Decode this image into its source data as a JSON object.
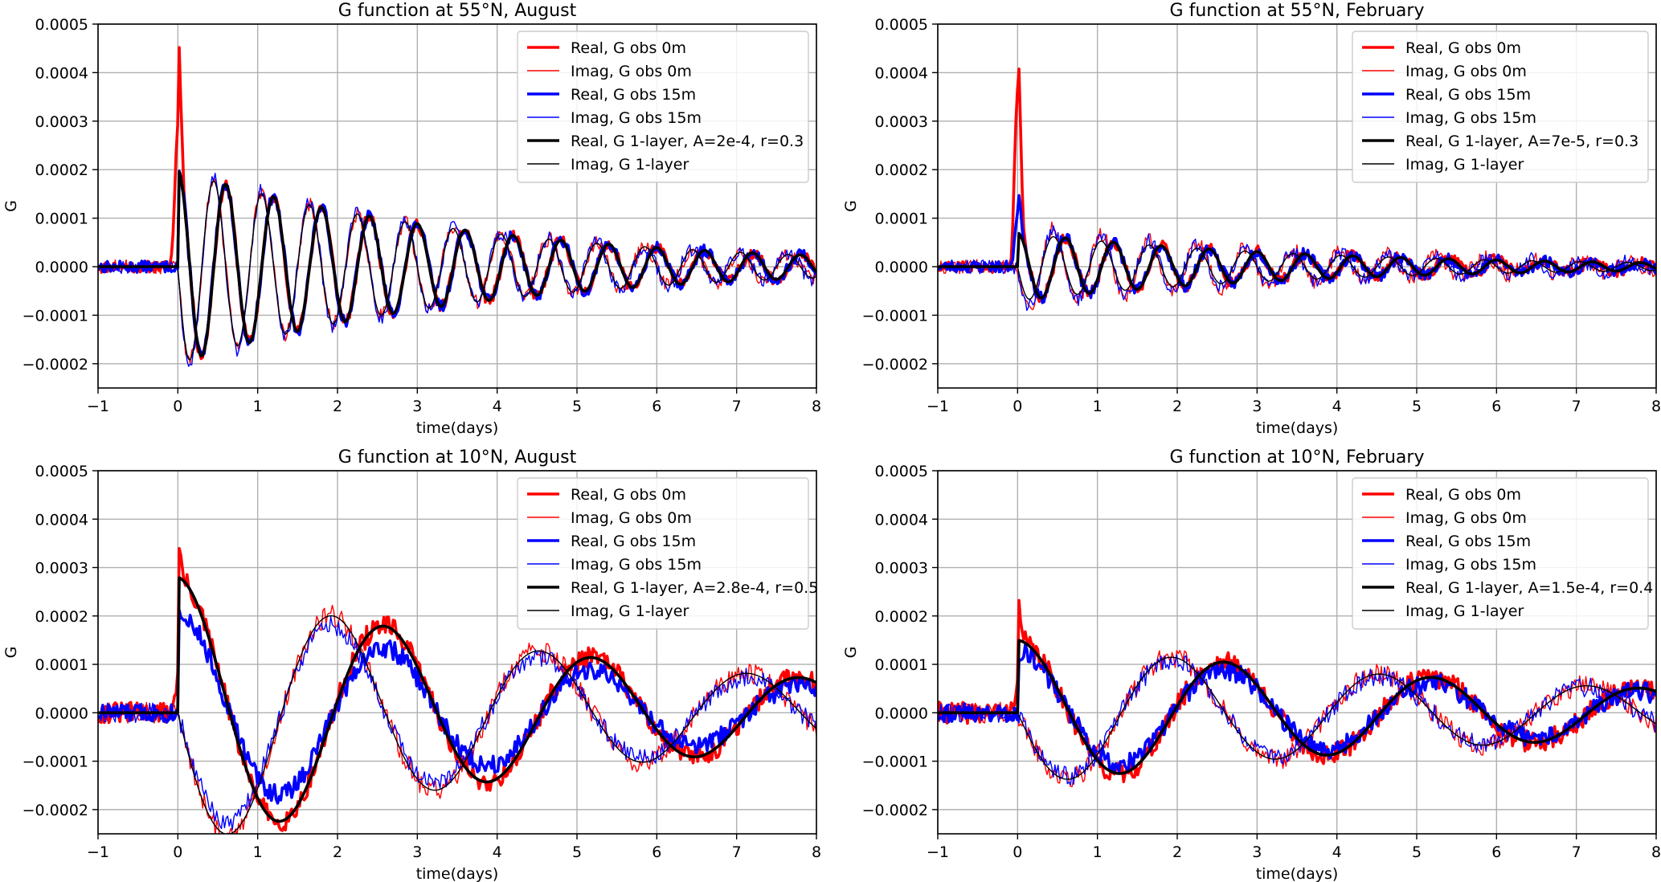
{
  "chart_data": [
    {
      "type": "line",
      "title": "G function at 55°N, August",
      "xlabel": "time(days)",
      "ylabel": "G",
      "xlim": [
        -1,
        8
      ],
      "ylim": [
        -0.00025,
        0.0005
      ],
      "xticks": [
        -1,
        0,
        1,
        2,
        3,
        4,
        5,
        6,
        7,
        8
      ],
      "yticks": [
        -0.0002,
        -0.0001,
        0.0,
        0.0001,
        0.0002,
        0.0003,
        0.0004,
        0.0005
      ],
      "ytick_labels": [
        "−0.0002",
        "−0.0001",
        "0.0000",
        "0.0001",
        "0.0002",
        "0.0003",
        "0.0004",
        "0.0005"
      ],
      "grid": true,
      "legend_position": "top-right",
      "model": {
        "A": 0.0002,
        "r": 0.3,
        "period": 0.6,
        "lag": 0.0,
        "real_scale": 1.0
      },
      "series": [
        {
          "name": "Real, G obs 0m",
          "color": "#ff0000",
          "width": "thick",
          "kind": "real",
          "scale": 1.0,
          "spike": 0.00029,
          "noise": 1.2e-05,
          "seed": 11
        },
        {
          "name": "Imag, G obs 0m",
          "color": "#ff0000",
          "width": "thin",
          "kind": "imag",
          "scale": 1.0,
          "spike": 0.0,
          "noise": 1.5e-05,
          "seed": 12
        },
        {
          "name": "Real, G obs 15m",
          "color": "#0000ff",
          "width": "thick",
          "kind": "real",
          "scale": 1.0,
          "spike": 0.0,
          "noise": 1.2e-05,
          "seed": 13
        },
        {
          "name": "Imag, G obs 15m",
          "color": "#0000ff",
          "width": "thin",
          "kind": "imag",
          "scale": 1.05,
          "spike": 0.0,
          "noise": 1.5e-05,
          "seed": 14
        },
        {
          "name": "Real, G 1-layer, A=2e-4, r=0.3",
          "color": "#000000",
          "width": "thick",
          "kind": "real",
          "scale": 1.0,
          "spike": 0.0,
          "noise": 0.0,
          "seed": 15
        },
        {
          "name": "Imag, G 1-layer",
          "color": "#000000",
          "width": "thin",
          "kind": "imag",
          "scale": 1.0,
          "spike": 0.0,
          "noise": 0.0,
          "seed": 16
        }
      ]
    },
    {
      "type": "line",
      "title": "G function at 55°N, February",
      "xlabel": "time(days)",
      "ylabel": "G",
      "xlim": [
        -1,
        8
      ],
      "ylim": [
        -0.00025,
        0.0005
      ],
      "xticks": [
        -1,
        0,
        1,
        2,
        3,
        4,
        5,
        6,
        7,
        8
      ],
      "yticks": [
        -0.0002,
        -0.0001,
        0.0,
        0.0001,
        0.0002,
        0.0003,
        0.0004,
        0.0005
      ],
      "ytick_labels": [
        "−0.0002",
        "−0.0001",
        "0.0000",
        "0.0001",
        "0.0002",
        "0.0003",
        "0.0004",
        "0.0005"
      ],
      "grid": true,
      "legend_position": "top-right",
      "model": {
        "A": 7e-05,
        "r": 0.3,
        "period": 0.6,
        "lag": 0.0,
        "real_scale": 1.0
      },
      "series": [
        {
          "name": "Real, G obs 0m",
          "color": "#ff0000",
          "width": "thick",
          "kind": "real",
          "scale": 1.0,
          "spike": 0.00037,
          "noise": 1.2e-05,
          "seed": 21
        },
        {
          "name": "Imag, G obs 0m",
          "color": "#ff0000",
          "width": "thin",
          "kind": "imag",
          "scale": 1.3,
          "spike": 0.0,
          "noise": 1.5e-05,
          "seed": 22
        },
        {
          "name": "Real, G obs 15m",
          "color": "#0000ff",
          "width": "thick",
          "kind": "real",
          "scale": 1.0,
          "spike": 0.0001,
          "noise": 1.2e-05,
          "seed": 23
        },
        {
          "name": "Imag, G obs 15m",
          "color": "#0000ff",
          "width": "thin",
          "kind": "imag",
          "scale": 1.2,
          "spike": 0.0,
          "noise": 1.5e-05,
          "seed": 24
        },
        {
          "name": "Real, G 1-layer, A=7e-5, r=0.3",
          "color": "#000000",
          "width": "thick",
          "kind": "real",
          "scale": 1.0,
          "spike": 0.0,
          "noise": 0.0,
          "seed": 25
        },
        {
          "name": "Imag, G 1-layer",
          "color": "#000000",
          "width": "thin",
          "kind": "imag",
          "scale": 1.0,
          "spike": 0.0,
          "noise": 0.0,
          "seed": 26
        }
      ]
    },
    {
      "type": "line",
      "title": "G function at 10°N, August",
      "xlabel": "time(days)",
      "ylabel": "G",
      "xlim": [
        -1,
        8
      ],
      "ylim": [
        -0.00025,
        0.0005
      ],
      "xticks": [
        -1,
        0,
        1,
        2,
        3,
        4,
        5,
        6,
        7,
        8
      ],
      "yticks": [
        -0.0002,
        -0.0001,
        0.0,
        0.0001,
        0.0002,
        0.0003,
        0.0004,
        0.0005
      ],
      "ytick_labels": [
        "−0.0002",
        "−0.0001",
        "0.0000",
        "0.0001",
        "0.0002",
        "0.0003",
        "0.0004",
        "0.0005"
      ],
      "grid": true,
      "legend_position": "top-right",
      "model": {
        "A": 0.00028,
        "r": 0.5,
        "period": 2.6,
        "lag": 0.15,
        "real_scale": 1.0
      },
      "series": [
        {
          "name": "Real, G obs 0m",
          "color": "#ff0000",
          "width": "thick",
          "kind": "real",
          "scale": 1.0,
          "spike": 7e-05,
          "noise": 2.2e-05,
          "seed": 31
        },
        {
          "name": "Imag, G obs 0m",
          "color": "#ff0000",
          "width": "thin",
          "kind": "imag",
          "scale": 1.0,
          "spike": 0.0,
          "noise": 2.2e-05,
          "seed": 32
        },
        {
          "name": "Real, G obs 15m",
          "color": "#0000ff",
          "width": "thick",
          "kind": "real",
          "scale": 0.75,
          "spike": 0.0,
          "noise": 2e-05,
          "seed": 33
        },
        {
          "name": "Imag, G obs 15m",
          "color": "#0000ff",
          "width": "thin",
          "kind": "imag",
          "scale": 0.9,
          "spike": 0.0,
          "noise": 2e-05,
          "seed": 34
        },
        {
          "name": "Real, G 1-layer, A=2.8e-4, r=0.5",
          "color": "#000000",
          "width": "thick",
          "kind": "real",
          "scale": 1.0,
          "spike": 0.0,
          "noise": 0.0,
          "seed": 35
        },
        {
          "name": "Imag, G 1-layer",
          "color": "#000000",
          "width": "thin",
          "kind": "imag",
          "scale": 1.0,
          "spike": 0.0,
          "noise": 0.0,
          "seed": 36
        }
      ]
    },
    {
      "type": "line",
      "title": "G function at 10°N, February",
      "xlabel": "time(days)",
      "ylabel": "G",
      "xlim": [
        -1,
        8
      ],
      "ylim": [
        -0.00025,
        0.0005
      ],
      "xticks": [
        -1,
        0,
        1,
        2,
        3,
        4,
        5,
        6,
        7,
        8
      ],
      "yticks": [
        -0.0002,
        -0.0001,
        0.0,
        0.0001,
        0.0002,
        0.0003,
        0.0004,
        0.0005
      ],
      "ytick_labels": [
        "−0.0002",
        "−0.0001",
        "0.0000",
        "0.0001",
        "0.0002",
        "0.0003",
        "0.0004",
        "0.0005"
      ],
      "grid": true,
      "legend_position": "top-right",
      "model": {
        "A": 0.00015,
        "r": 0.4,
        "period": 2.6,
        "lag": 0.15,
        "real_scale": 1.0
      },
      "series": [
        {
          "name": "Real, G obs 0m",
          "color": "#ff0000",
          "width": "thick",
          "kind": "real",
          "scale": 1.0,
          "spike": 7e-05,
          "noise": 2.2e-05,
          "seed": 41
        },
        {
          "name": "Imag, G obs 0m",
          "color": "#ff0000",
          "width": "thin",
          "kind": "imag",
          "scale": 1.0,
          "spike": 0.0,
          "noise": 2.2e-05,
          "seed": 42
        },
        {
          "name": "Real, G obs 15m",
          "color": "#0000ff",
          "width": "thick",
          "kind": "real",
          "scale": 0.85,
          "spike": 0.0,
          "noise": 2e-05,
          "seed": 43
        },
        {
          "name": "Imag, G obs 15m",
          "color": "#0000ff",
          "width": "thin",
          "kind": "imag",
          "scale": 0.95,
          "spike": 0.0,
          "noise": 2e-05,
          "seed": 44
        },
        {
          "name": "Real, G 1-layer, A=1.5e-4, r=0.4",
          "color": "#000000",
          "width": "thick",
          "kind": "real",
          "scale": 1.0,
          "spike": 0.0,
          "noise": 0.0,
          "seed": 45
        },
        {
          "name": "Imag, G 1-layer",
          "color": "#000000",
          "width": "thin",
          "kind": "imag",
          "scale": 1.0,
          "spike": 0.0,
          "noise": 0.0,
          "seed": 46
        }
      ]
    }
  ]
}
